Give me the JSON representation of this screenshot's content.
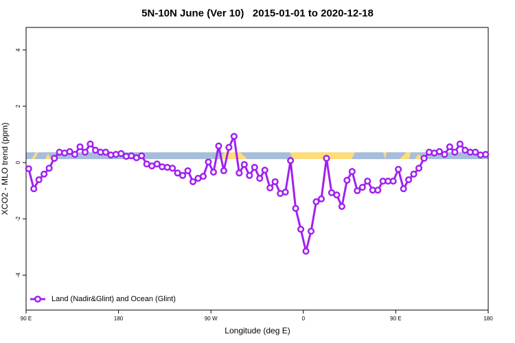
{
  "chart_data": {
    "type": "line",
    "title": "5N-10N June (Ver 10)   2015-01-01 to 2020-12-18",
    "xlabel": "Longitude (deg E)",
    "ylabel": "XCO2 - MLO trend (ppm)",
    "xlim": [
      90,
      540
    ],
    "xticks": [
      {
        "value": 90,
        "label": "90 E"
      },
      180,
      {
        "value": 270,
        "label": "90 W"
      },
      {
        "value": 360,
        "label": "0"
      },
      {
        "value": 450,
        "label": "90 E"
      },
      {
        "value": 540,
        "label": "180"
      }
    ],
    "ylim": [
      -5.24,
      4.8
    ],
    "yticks": [
      -4,
      -2,
      0,
      2,
      4
    ],
    "legend": "bottomleft",
    "x": [
      92.5,
      97.5,
      102.5,
      107.5,
      112.5,
      117.5,
      122.5,
      127.5,
      132.5,
      137.5,
      142.5,
      147.5,
      152.5,
      157.5,
      162.5,
      167.5,
      172.5,
      177.5,
      182.5,
      187.5,
      192.5,
      197.5,
      202.5,
      207.5,
      212.5,
      217.5,
      222.5,
      227.5,
      232.5,
      237.5,
      242.5,
      247.5,
      252.5,
      257.5,
      262.5,
      267.5,
      272.5,
      277.5,
      282.5,
      287.5,
      292.5,
      297.5,
      302.5,
      307.5,
      312.5,
      317.5,
      322.5,
      327.5,
      332.5,
      337.5,
      342.5,
      347.5,
      352.5,
      357.5,
      362.5,
      367.5,
      372.5,
      377.5,
      382.5,
      387.5,
      392.5,
      397.5,
      402.5,
      407.5,
      412.5,
      417.5,
      422.5,
      427.5,
      432.5,
      437.5,
      442.5,
      447.5,
      452.5,
      457.5,
      462.5,
      467.5,
      472.5,
      477.5,
      482.5,
      487.5,
      492.5,
      497.5,
      502.5,
      507.5,
      512.5,
      517.5,
      522.5,
      527.5,
      532.5,
      537.5
    ],
    "series": [
      {
        "name": "Land (Nadir&Glint) and Ocean (Glint)",
        "color": "#a020f0",
        "values": [
          -0.22,
          -0.93,
          -0.61,
          -0.41,
          -0.2,
          0.15,
          0.37,
          0.34,
          0.39,
          0.29,
          0.56,
          0.37,
          0.66,
          0.44,
          0.37,
          0.37,
          0.27,
          0.29,
          0.32,
          0.22,
          0.24,
          0.17,
          0.24,
          -0.05,
          -0.12,
          -0.05,
          -0.15,
          -0.17,
          -0.2,
          -0.37,
          -0.46,
          -0.29,
          -0.68,
          -0.56,
          -0.49,
          0.02,
          -0.34,
          0.59,
          -0.29,
          0.54,
          0.93,
          -0.37,
          -0.07,
          -0.46,
          -0.17,
          -0.56,
          -0.27,
          -0.9,
          -0.68,
          -1.1,
          -1.05,
          0.07,
          -1.63,
          -2.37,
          -3.15,
          -2.44,
          -1.39,
          -1.29,
          0.15,
          -1.07,
          -1.15,
          -1.56,
          -0.63,
          -0.32,
          -1.0,
          -0.88,
          -0.66,
          -0.98,
          -0.98,
          -0.66,
          -0.66,
          -0.66,
          -0.24,
          -0.93,
          -0.61,
          -0.41,
          -0.2,
          0.15,
          0.37,
          0.34,
          0.39,
          0.29,
          0.56,
          0.37,
          0.66,
          0.44,
          0.37,
          0.37,
          0.27,
          0.29
        ]
      }
    ]
  }
}
